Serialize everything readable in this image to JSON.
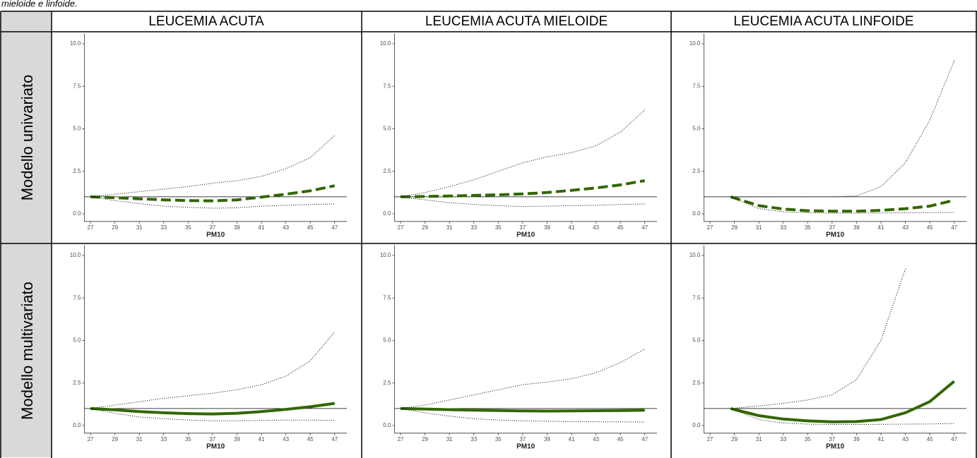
{
  "caption": "mieloide e linfoide.",
  "table": {
    "columns": [
      "LEUCEMIA ACUTA",
      "LEUCEMIA ACUTA MIELOIDE",
      "LEUCEMIA ACUTA LINFOIDE"
    ],
    "rows": [
      "Modello univariato",
      "Modello multivariato"
    ]
  },
  "chart_data": [
    {
      "type": "line",
      "xlabel": "PM10",
      "x": [
        27,
        29,
        31,
        33,
        35,
        37,
        39,
        41,
        43,
        45,
        47
      ],
      "hline": 1,
      "series": [
        {
          "color": "#336600",
          "style": "dashed",
          "values": [
            1.0,
            0.95,
            0.88,
            0.82,
            0.78,
            0.76,
            0.82,
            0.98,
            1.15,
            1.35,
            1.65
          ]
        },
        {
          "color": "#000000",
          "style": "dotted",
          "values": [
            1.0,
            1.15,
            1.3,
            1.45,
            1.6,
            1.8,
            1.95,
            2.2,
            2.65,
            3.3,
            4.6
          ]
        },
        {
          "color": "#000000",
          "style": "dotted",
          "values": [
            1.0,
            0.78,
            0.6,
            0.45,
            0.38,
            0.33,
            0.35,
            0.45,
            0.5,
            0.55,
            0.58
          ]
        }
      ],
      "xlim": [
        26.5,
        48
      ],
      "ylim": [
        -0.45,
        10.6
      ],
      "xticks": [
        27,
        29,
        31,
        33,
        35,
        37,
        39,
        41,
        43,
        45,
        47
      ],
      "yticks": [
        {
          "value": 0,
          "label": "0.0"
        },
        {
          "value": 2.5,
          "label": "2.5"
        },
        {
          "value": 5,
          "label": "5.0"
        },
        {
          "value": 7.5,
          "label": "7.5"
        },
        {
          "value": 10,
          "label": "10.0"
        }
      ]
    },
    {
      "type": "line",
      "xlabel": "PM10",
      "x": [
        27,
        29,
        31,
        33,
        35,
        37,
        39,
        41,
        43,
        45,
        47
      ],
      "hline": 1,
      "series": [
        {
          "color": "#336600",
          "style": "dashed",
          "values": [
            1.0,
            1.02,
            1.05,
            1.08,
            1.12,
            1.17,
            1.25,
            1.38,
            1.52,
            1.7,
            1.95
          ]
        },
        {
          "color": "#000000",
          "style": "dotted",
          "values": [
            1.0,
            1.25,
            1.6,
            2.0,
            2.5,
            3.0,
            3.35,
            3.6,
            4.0,
            4.8,
            6.1
          ]
        },
        {
          "color": "#000000",
          "style": "dotted",
          "values": [
            1.0,
            0.82,
            0.65,
            0.55,
            0.48,
            0.43,
            0.45,
            0.48,
            0.5,
            0.55,
            0.58
          ]
        }
      ],
      "xlim": [
        26.5,
        48
      ],
      "ylim": [
        -0.45,
        10.6
      ],
      "xticks": [
        27,
        29,
        31,
        33,
        35,
        37,
        39,
        41,
        43,
        45,
        47
      ],
      "yticks": [
        {
          "value": 0,
          "label": "0.0"
        },
        {
          "value": 2.5,
          "label": "2.5"
        },
        {
          "value": 5,
          "label": "5.0"
        },
        {
          "value": 7.5,
          "label": "7.5"
        },
        {
          "value": 10,
          "label": "10.0"
        }
      ]
    },
    {
      "type": "line",
      "xlabel": "PM10",
      "x": [
        28.7,
        31,
        33,
        35,
        37,
        39,
        41,
        43,
        45,
        47
      ],
      "hline": 1,
      "series": [
        {
          "color": "#336600",
          "style": "dashed",
          "values": [
            1.0,
            0.48,
            0.28,
            0.18,
            0.15,
            0.15,
            0.2,
            0.3,
            0.45,
            0.8
          ]
        },
        {
          "color": "#000000",
          "style": "dotted",
          "values": [
            1.0,
            1.0,
            1.0,
            1.0,
            1.0,
            1.05,
            1.6,
            3.0,
            5.5,
            9.0
          ]
        },
        {
          "color": "#000000",
          "style": "dotted",
          "values": [
            1.0,
            0.3,
            0.12,
            0.06,
            0.04,
            0.04,
            0.05,
            0.06,
            0.07,
            0.08
          ]
        }
      ],
      "xlim": [
        26.5,
        48
      ],
      "ylim": [
        -0.45,
        10.6
      ],
      "xticks": [
        27,
        29,
        31,
        33,
        35,
        37,
        39,
        41,
        43,
        45,
        47
      ],
      "yticks": [
        {
          "value": 0,
          "label": "0.0"
        },
        {
          "value": 2.5,
          "label": "2.5"
        },
        {
          "value": 5,
          "label": "5.0"
        },
        {
          "value": 7.5,
          "label": "7.5"
        },
        {
          "value": 10,
          "label": "10.0"
        }
      ]
    },
    {
      "type": "line",
      "xlabel": "PM10",
      "x": [
        27,
        29,
        31,
        33,
        35,
        37,
        39,
        41,
        43,
        45,
        47
      ],
      "hline": 1,
      "series": [
        {
          "color": "#336600",
          "style": "solid",
          "values": [
            1.0,
            0.92,
            0.82,
            0.75,
            0.7,
            0.68,
            0.72,
            0.82,
            0.95,
            1.1,
            1.3
          ]
        },
        {
          "color": "#000000",
          "style": "dotted",
          "values": [
            1.0,
            1.2,
            1.4,
            1.6,
            1.75,
            1.9,
            2.1,
            2.4,
            2.9,
            3.8,
            5.5
          ]
        },
        {
          "color": "#000000",
          "style": "dotted",
          "values": [
            1.0,
            0.72,
            0.5,
            0.4,
            0.32,
            0.28,
            0.28,
            0.3,
            0.32,
            0.32,
            0.3
          ]
        }
      ],
      "xlim": [
        26.5,
        48
      ],
      "ylim": [
        -0.45,
        10.6
      ],
      "xticks": [
        27,
        29,
        31,
        33,
        35,
        37,
        39,
        41,
        43,
        45,
        47
      ],
      "yticks": [
        {
          "value": 0,
          "label": "0.0"
        },
        {
          "value": 2.5,
          "label": "2.5"
        },
        {
          "value": 5,
          "label": "5.0"
        },
        {
          "value": 7.5,
          "label": "7.5"
        },
        {
          "value": 10,
          "label": "10.0"
        }
      ]
    },
    {
      "type": "line",
      "xlabel": "PM10",
      "x": [
        27,
        29,
        31,
        33,
        35,
        37,
        39,
        41,
        43,
        45,
        47
      ],
      "hline": 1,
      "series": [
        {
          "color": "#336600",
          "style": "solid",
          "values": [
            1.0,
            0.97,
            0.93,
            0.9,
            0.88,
            0.86,
            0.85,
            0.86,
            0.87,
            0.88,
            0.9
          ]
        },
        {
          "color": "#000000",
          "style": "dotted",
          "values": [
            1.0,
            1.2,
            1.5,
            1.8,
            2.1,
            2.4,
            2.55,
            2.75,
            3.1,
            3.7,
            4.5
          ]
        },
        {
          "color": "#000000",
          "style": "dotted",
          "values": [
            1.0,
            0.75,
            0.55,
            0.4,
            0.32,
            0.27,
            0.25,
            0.23,
            0.22,
            0.22,
            0.2
          ]
        }
      ],
      "xlim": [
        26.5,
        48
      ],
      "ylim": [
        -0.45,
        10.6
      ],
      "xticks": [
        27,
        29,
        31,
        33,
        35,
        37,
        39,
        41,
        43,
        45,
        47
      ],
      "yticks": [
        {
          "value": 0,
          "label": "0.0"
        },
        {
          "value": 2.5,
          "label": "2.5"
        },
        {
          "value": 5,
          "label": "5.0"
        },
        {
          "value": 7.5,
          "label": "7.5"
        },
        {
          "value": 10,
          "label": "10.0"
        }
      ]
    },
    {
      "type": "line",
      "xlabel": "PM10",
      "x": [
        28.7,
        31,
        33,
        35,
        37,
        39,
        41,
        43,
        45,
        47
      ],
      "hline": 1,
      "series": [
        {
          "color": "#336600",
          "style": "solid",
          "values": [
            1.0,
            0.58,
            0.38,
            0.27,
            0.22,
            0.23,
            0.35,
            0.75,
            1.4,
            2.6
          ]
        },
        {
          "color": "#000000",
          "style": "dotted",
          "values": [
            1.0,
            1.15,
            1.3,
            1.5,
            1.8,
            2.7,
            5.0,
            9.2,
            null,
            null
          ]
        },
        {
          "color": "#000000",
          "style": "dotted",
          "values": [
            1.0,
            0.35,
            0.15,
            0.08,
            0.06,
            0.06,
            0.07,
            0.08,
            0.09,
            0.12
          ]
        }
      ],
      "xlim": [
        26.5,
        48
      ],
      "ylim": [
        -0.45,
        10.6
      ],
      "xticks": [
        27,
        29,
        31,
        33,
        35,
        37,
        39,
        41,
        43,
        45,
        47
      ],
      "yticks": [
        {
          "value": 0,
          "label": "0.0"
        },
        {
          "value": 2.5,
          "label": "2.5"
        },
        {
          "value": 5,
          "label": "5.0"
        },
        {
          "value": 7.5,
          "label": "7.5"
        },
        {
          "value": 10,
          "label": "10.0"
        }
      ]
    }
  ]
}
